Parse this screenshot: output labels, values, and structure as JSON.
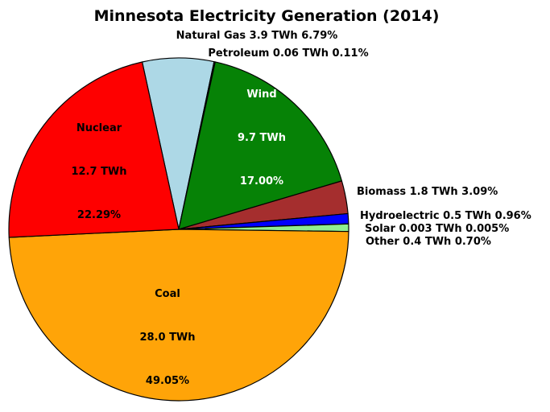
{
  "chart_data": {
    "type": "pie",
    "title": "Minnesota Electricity Generation (2014)",
    "value_unit": "TWh",
    "direction": "clockwise",
    "start_angle_from_north_deg": -12.44,
    "legend_position": "none",
    "background_color": "#ffffff",
    "edge_color": "#000000",
    "slices": [
      {
        "key": "natural-gas",
        "name": "Natural Gas",
        "value_twh": 3.9,
        "percent": 6.79,
        "color": "#add8e6",
        "label_color": "#000000",
        "value_text": "3.9 TWh",
        "percent_text": "6.79%",
        "full_text": "Natural Gas 3.9 TWh 6.79%",
        "label_placement": "outside"
      },
      {
        "key": "petroleum",
        "name": "Petroleum",
        "value_twh": 0.06,
        "percent": 0.11,
        "color": "#303030",
        "label_color": "#000000",
        "value_text": "0.06 TWh",
        "percent_text": "0.11%",
        "full_text": "Petroleum 0.06 TWh 0.11%",
        "label_placement": "outside"
      },
      {
        "key": "wind",
        "name": "Wind",
        "value_twh": 9.7,
        "percent": 17.0,
        "color": "#068206",
        "label_color": "#ffffff",
        "value_text": "9.7 TWh",
        "percent_text": "17.00%",
        "full_text": "Wind 9.7 TWh 17.00%",
        "label_placement": "inside"
      },
      {
        "key": "biomass",
        "name": "Biomass",
        "value_twh": 1.8,
        "percent": 3.09,
        "color": "#a52e2e",
        "label_color": "#000000",
        "value_text": "1.8 TWh",
        "percent_text": "3.09%",
        "full_text": "Biomass 1.8 TWh 3.09%",
        "label_placement": "outside"
      },
      {
        "key": "hydroelectric",
        "name": "Hydroelectric",
        "value_twh": 0.5,
        "percent": 0.96,
        "color": "#0000ff",
        "label_color": "#000000",
        "value_text": "0.5 TWh",
        "percent_text": "0.96%",
        "full_text": "Hydroelectric 0.5 TWh 0.96%",
        "label_placement": "outside"
      },
      {
        "key": "solar",
        "name": "Solar",
        "value_twh": 0.003,
        "percent": 0.005,
        "color": "#d8f8d8",
        "label_color": "#000000",
        "value_text": "0.003 TWh",
        "percent_text": "0.005%",
        "full_text": "Solar 0.003 TWh 0.005%",
        "label_placement": "outside"
      },
      {
        "key": "other",
        "name": "Other",
        "value_twh": 0.4,
        "percent": 0.7,
        "color": "#90ee90",
        "label_color": "#000000",
        "value_text": "0.4 TWh",
        "percent_text": "0.70%",
        "full_text": "Other 0.4 TWh 0.70%",
        "label_placement": "outside"
      },
      {
        "key": "coal",
        "name": "Coal",
        "value_twh": 28.0,
        "percent": 49.05,
        "color": "#ffa408",
        "label_color": "#000000",
        "value_text": "28.0 TWh",
        "percent_text": "49.05%",
        "full_text": "Coal 28.0 TWh 49.05%",
        "label_placement": "inside"
      },
      {
        "key": "nuclear",
        "name": "Nuclear",
        "value_twh": 12.7,
        "percent": 22.29,
        "color": "#fe0000",
        "label_color": "#000000",
        "value_text": "12.7 TWh",
        "percent_text": "22.29%",
        "full_text": "Nuclear 12.7 TWh 22.29%",
        "label_placement": "inside"
      }
    ]
  }
}
